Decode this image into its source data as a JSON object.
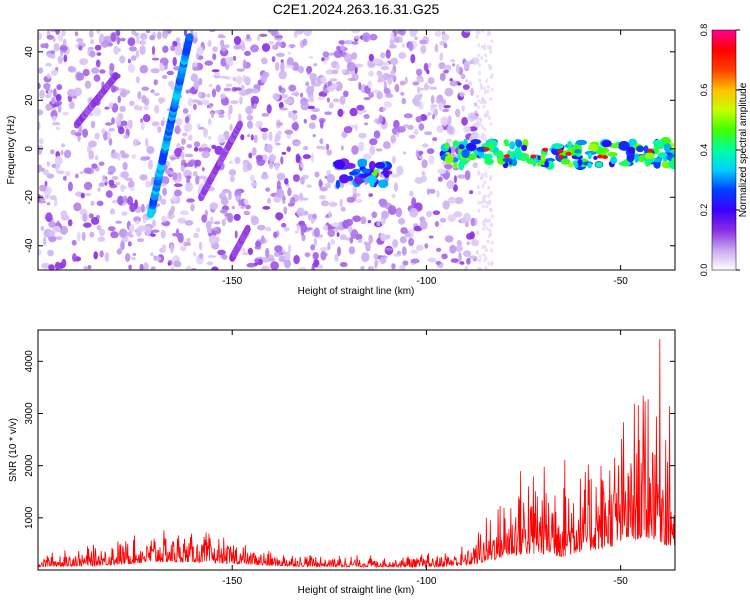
{
  "chart_data": [
    {
      "type": "heatmap",
      "title": "C2E1.2024.263.16.31.G25",
      "xlabel": "Height of straight line (km)",
      "ylabel": "Frequency (Hz)",
      "xlim": [
        -200,
        -36
      ],
      "ylim": [
        -50,
        49
      ],
      "xticks": [
        -150,
        -100,
        -50
      ],
      "yticks": [
        -40,
        -20,
        0,
        20,
        40
      ],
      "grid": false,
      "colorbar": {
        "label": "Normalized spectral amplitude",
        "range": [
          0.0,
          0.8
        ],
        "ticks": [
          "0.0",
          "0.2",
          "0.4",
          "0.6",
          "0.8"
        ],
        "colormap": [
          "#ffffff",
          "#c8a8f0",
          "#8a2be2",
          "#3a00ff",
          "#0040ff",
          "#00d0ff",
          "#00ffa0",
          "#40ff00",
          "#c8ff00",
          "#ffc000",
          "#ff4000",
          "#ff0000",
          "#ff0090"
        ]
      },
      "features": [
        {
          "kind": "bright streak",
          "x": [
            -171,
            -161
          ],
          "y": [
            -27,
            46
          ],
          "amplitude": 0.3
        },
        {
          "kind": "faint streak",
          "x": [
            -190,
            -180
          ],
          "y": [
            10,
            30
          ],
          "amplitude": 0.12
        },
        {
          "kind": "faint streak",
          "x": [
            -158,
            -148
          ],
          "y": [
            -20,
            10
          ],
          "amplitude": 0.12
        },
        {
          "kind": "faint streak",
          "x": [
            -150,
            -146
          ],
          "y": [
            -45,
            -33
          ],
          "amplitude": 0.12
        },
        {
          "kind": "band",
          "x": [
            -123,
            -110
          ],
          "y_center": -10,
          "amplitude": 0.3
        },
        {
          "kind": "band",
          "x": [
            -96,
            -36
          ],
          "y_center": -2,
          "amplitude": 0.45
        }
      ],
      "noise_region_x": [
        -200,
        -87
      ]
    },
    {
      "type": "line",
      "xlabel": "Height of straight line (km)",
      "ylabel": "SNR (10 * v/v)",
      "xlim": [
        -200,
        -36
      ],
      "ylim": [
        0,
        4600
      ],
      "xticks": [
        -150,
        -100,
        -50
      ],
      "yticks": [
        1000,
        2000,
        3000,
        4000
      ],
      "grid": false,
      "color": "#ff0000",
      "envelope": {
        "x": [
          -200,
          -185,
          -170,
          -160,
          -150,
          -140,
          -125,
          -110,
          -100,
          -90,
          -85,
          -80,
          -75,
          -70,
          -65,
          -60,
          -55,
          -50,
          -45,
          -42,
          -40,
          -38,
          -36
        ],
        "low": [
          60,
          80,
          150,
          150,
          120,
          80,
          60,
          60,
          50,
          80,
          150,
          250,
          300,
          300,
          250,
          350,
          400,
          500,
          600,
          600,
          550,
          450,
          400
        ],
        "high": [
          300,
          500,
          750,
          800,
          600,
          350,
          300,
          280,
          320,
          500,
          1000,
          1400,
          2100,
          2000,
          2300,
          1900,
          2300,
          2900,
          3600,
          4400,
          4600,
          3500,
          2500
        ]
      }
    }
  ]
}
